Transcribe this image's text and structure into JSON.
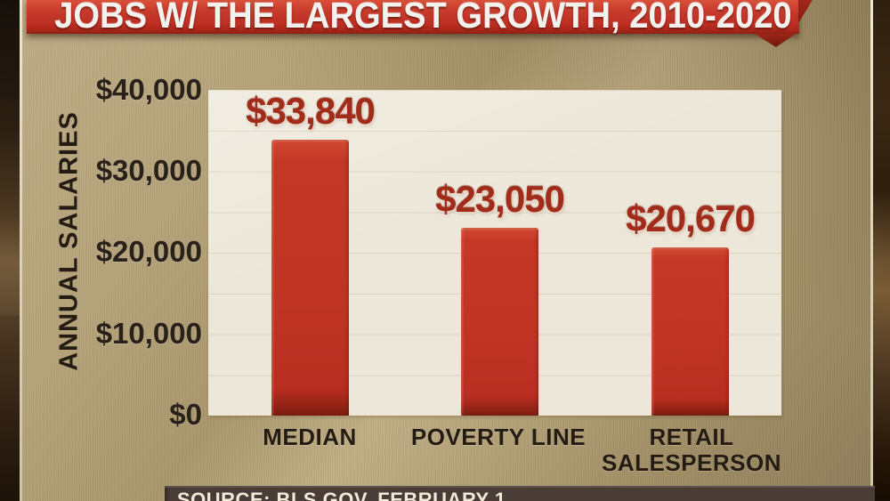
{
  "banner": {
    "title": "JOBS W/ THE LARGEST GROWTH, 2010-2020"
  },
  "source": {
    "label": "SOURCE: BLS.GOV, FEBRUARY 1"
  },
  "chart_data": {
    "type": "bar",
    "title": "JOBS W/ THE LARGEST GROWTH, 2010-2020",
    "ylabel": "ANNUAL SALARIES",
    "xlabel": "",
    "categories": [
      "MEDIAN",
      "POVERTY LINE",
      "RETAIL SALESPERSON"
    ],
    "values": [
      33840,
      23050,
      20670
    ],
    "value_labels": [
      "$33,840",
      "$23,050",
      "$20,670"
    ],
    "ylim": [
      0,
      40000
    ],
    "ytick_labels": [
      "$40,000",
      "$30,000",
      "$20,000",
      "$10,000",
      "$0"
    ],
    "ytick_values": [
      40000,
      30000,
      20000,
      10000,
      0
    ],
    "gridline_step": 5000,
    "grid": "on",
    "legend": "none",
    "bar_color": "#c0392b",
    "value_label_color": "#a22b1a",
    "plot_background": "#ece7d9"
  },
  "colors": {
    "banner_red": "#bd2f23",
    "background_tan": "#b2a077",
    "frame_brown": "#241910",
    "text_dark": "#241c12",
    "source_bar_brown": "#4a3c37",
    "source_text_cream": "#f1ead9"
  }
}
